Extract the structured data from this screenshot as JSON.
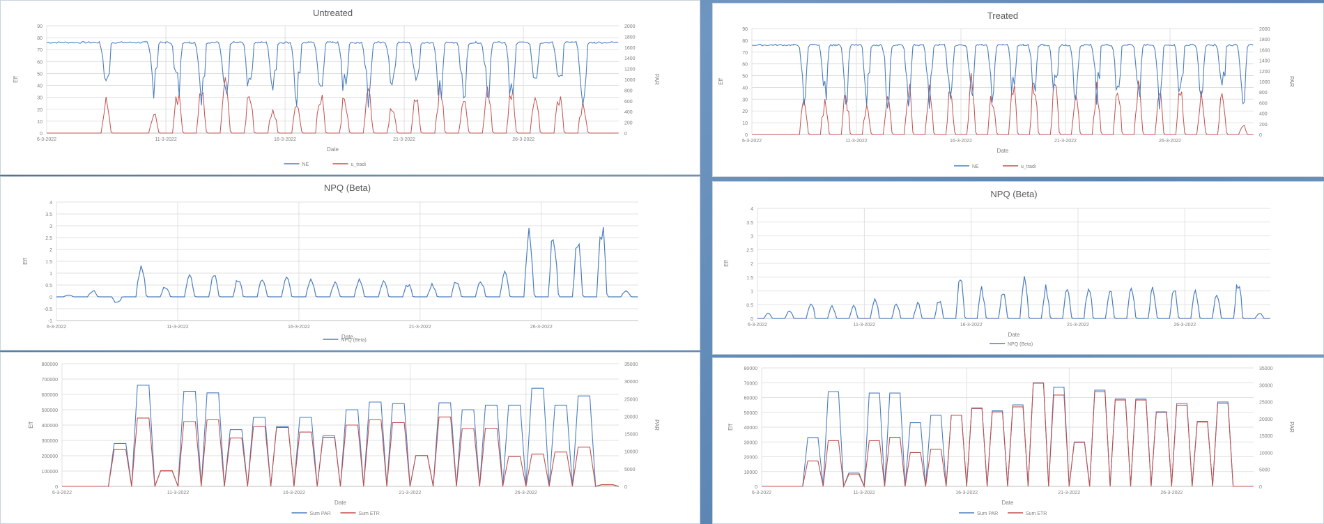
{
  "left": {
    "top": {
      "title": "Untreated",
      "ylabel": "Eff",
      "y2label": "PAR",
      "xlabel": "Date",
      "yticks": [
        "0",
        "10",
        "20",
        "30",
        "40",
        "50",
        "60",
        "70",
        "80",
        "90"
      ],
      "y2ticks": [
        "0",
        "200",
        "400",
        "600",
        "800",
        "1000",
        "1200",
        "1400",
        "1600",
        "1800",
        "2000"
      ],
      "xticks": [
        "6-3-2022",
        "11-3-2022",
        "16-3-2022",
        "21-3-2022",
        "26-3-2022"
      ],
      "legend": [
        "NE",
        "u_tradi"
      ]
    },
    "mid": {
      "title": "NPQ (Beta)",
      "ylabel": "Eff",
      "xlabel": "Date",
      "yticks": [
        "-1",
        "-0.5",
        "0",
        "0.5",
        "1",
        "1.5",
        "2",
        "2.5",
        "3",
        "3.5",
        "4"
      ],
      "xticks": [
        "6-3-2022",
        "11-3-2022",
        "16-3-2022",
        "21-3-2022",
        "26-3-2022"
      ],
      "legend": [
        "NPQ (Beta)"
      ]
    },
    "bot": {
      "ylabel": "Eff",
      "y2label": "PAR",
      "xlabel": "Date",
      "yticks": [
        "0",
        "100000",
        "200000",
        "300000",
        "400000",
        "500000",
        "600000",
        "700000",
        "800000"
      ],
      "y2ticks": [
        "0",
        "5000",
        "10000",
        "15000",
        "20000",
        "25000",
        "30000",
        "35000"
      ],
      "xticks": [
        "6-3-2022",
        "11-3-2022",
        "16-3-2022",
        "21-3-2022",
        "26-3-2022"
      ],
      "legend": [
        "Sum PAR",
        "Sum ETR"
      ]
    }
  },
  "right": {
    "top": {
      "title": "Treated",
      "ylabel": "Eff",
      "y2label": "PAR",
      "xlabel": "Date",
      "yticks": [
        "0",
        "10",
        "20",
        "30",
        "40",
        "50",
        "60",
        "70",
        "80",
        "90"
      ],
      "y2ticks": [
        "0",
        "200",
        "400",
        "600",
        "800",
        "1000",
        "1200",
        "1400",
        "1600",
        "1800",
        "2000"
      ],
      "xticks": [
        "6-3-2022",
        "11-3-2022",
        "16-3-2022",
        "21-3-2022",
        "26-3-2022"
      ],
      "legend": [
        "NE",
        "u_tradi"
      ]
    },
    "mid": {
      "title": "NPQ (Beta)",
      "ylabel": "Eff",
      "xlabel": "Date",
      "yticks": [
        "0",
        "0.5",
        "1",
        "1.5",
        "2",
        "2.5",
        "3",
        "3.5",
        "4"
      ],
      "xticks": [
        "6-3-2022",
        "11-3-2022",
        "16-3-2022",
        "21-3-2022",
        "26-3-2022"
      ],
      "legend": [
        "NPQ (Beta)"
      ]
    },
    "bot": {
      "ylabel": "Eff",
      "y2label": "PAR",
      "xlabel": "Date",
      "yticks": [
        "0",
        "10000",
        "20000",
        "30000",
        "40000",
        "50000",
        "60000",
        "70000",
        "80000"
      ],
      "y2ticks": [
        "0",
        "5000",
        "10000",
        "15000",
        "20000",
        "25000",
        "30000",
        "35000"
      ],
      "xticks": [
        "6-3-2022",
        "11-3-2022",
        "16-3-2022",
        "21-3-2022",
        "26-3-2022"
      ],
      "legend": [
        "Sum PAR",
        "Sum ETR"
      ]
    }
  },
  "colors": {
    "blue": "#4a7ebf",
    "red": "#c0504d",
    "grid": "#d9d9d9"
  },
  "chart_data": [
    {
      "id": "untreated-ne-par",
      "type": "line",
      "title": "Untreated",
      "x_start": "6-3-2022",
      "x_end": "29-3-2022",
      "ylim": [
        0,
        90
      ],
      "y2lim": [
        0,
        2000
      ],
      "series": [
        {
          "name": "NE",
          "axis": "left",
          "pattern": "daily cycles: ~76 at night, dips to ~20-40 during the day"
        },
        {
          "name": "u_tradi",
          "axis": "right",
          "pattern": "daily PAR peaks ~600-1100, 0 at night"
        }
      ],
      "day_peaks_par": [
        0,
        0,
        700,
        0,
        400,
        900,
        1000,
        1100,
        800,
        600,
        700,
        900,
        800,
        900,
        700,
        800,
        1000,
        900,
        1000,
        900,
        1000,
        900,
        700,
        0
      ]
    },
    {
      "id": "untreated-npq",
      "type": "line",
      "title": "NPQ (Beta)",
      "ylim": [
        -1,
        4
      ],
      "series": [
        {
          "name": "NPQ (Beta)"
        }
      ],
      "day_peaks": [
        0.1,
        0.3,
        -0.3,
        1.6,
        0.5,
        1.0,
        1.0,
        0.9,
        0.9,
        0.9,
        0.8,
        0.7,
        0.8,
        0.8,
        0.6,
        0.6,
        0.8,
        0.8,
        1.2,
        3.3,
        2.9,
        2.5,
        3.4,
        0.3
      ]
    },
    {
      "id": "untreated-sum",
      "type": "line",
      "title": "",
      "ylim": [
        0,
        800000
      ],
      "y2lim": [
        0,
        35000
      ],
      "series": [
        {
          "name": "Sum PAR",
          "day_values": [
            0,
            0,
            280000,
            660000,
            100000,
            620000,
            610000,
            370000,
            450000,
            390000,
            450000,
            330000,
            500000,
            550000,
            540000,
            200000,
            545000,
            500000,
            530000,
            530000,
            640000,
            530000,
            590000,
            10000
          ]
        },
        {
          "name": "Sum ETR",
          "day_values": [
            0,
            0,
            10500,
            19500,
            4500,
            18500,
            19000,
            13800,
            17000,
            16800,
            15500,
            14000,
            17500,
            19000,
            18200,
            8800,
            19800,
            16500,
            16600,
            8500,
            9200,
            9800,
            11200,
            500
          ]
        }
      ]
    },
    {
      "id": "treated-ne-par",
      "type": "line",
      "title": "Treated",
      "ylim": [
        0,
        90
      ],
      "y2lim": [
        0,
        2000
      ],
      "series": [
        {
          "name": "NE",
          "axis": "left"
        },
        {
          "name": "u_tradi",
          "axis": "right"
        }
      ],
      "day_peaks_par": [
        0,
        0,
        900,
        800,
        900,
        700,
        900,
        1100,
        1200,
        1000,
        1200,
        1000,
        1100,
        1200,
        1100,
        1000,
        1100,
        1200,
        1200,
        1100,
        1100,
        1000,
        1000,
        200
      ]
    },
    {
      "id": "treated-npq",
      "type": "line",
      "title": "NPQ (Beta)",
      "ylim": [
        0,
        4
      ],
      "series": [
        {
          "name": "NPQ (Beta)"
        }
      ],
      "day_peaks": [
        0.2,
        0.3,
        0.7,
        0.5,
        0.5,
        0.8,
        0.6,
        0.6,
        0.8,
        1.8,
        1.2,
        1.1,
        1.6,
        1.3,
        1.2,
        1.3,
        1.1,
        1.2,
        1.2,
        1.2,
        1.1,
        1.1,
        1.5,
        0.2
      ]
    },
    {
      "id": "treated-sum",
      "type": "line",
      "title": "",
      "ylim": [
        0,
        80000
      ],
      "y2lim": [
        0,
        35000
      ],
      "series": [
        {
          "name": "Sum PAR",
          "day_values": [
            0,
            0,
            33000,
            64000,
            9000,
            63000,
            63000,
            43000,
            48000,
            48000,
            53000,
            51000,
            55000,
            70000,
            67000,
            30000,
            65000,
            59000,
            59000,
            50000,
            56000,
            44000,
            57000,
            0
          ]
        },
        {
          "name": "Sum ETR",
          "day_values": [
            0,
            0,
            7500,
            13500,
            3500,
            13500,
            14500,
            10000,
            11000,
            21000,
            23000,
            22000,
            23500,
            30500,
            27000,
            13000,
            28000,
            25500,
            25500,
            22000,
            24000,
            19000,
            24500,
            0
          ]
        }
      ]
    }
  ]
}
